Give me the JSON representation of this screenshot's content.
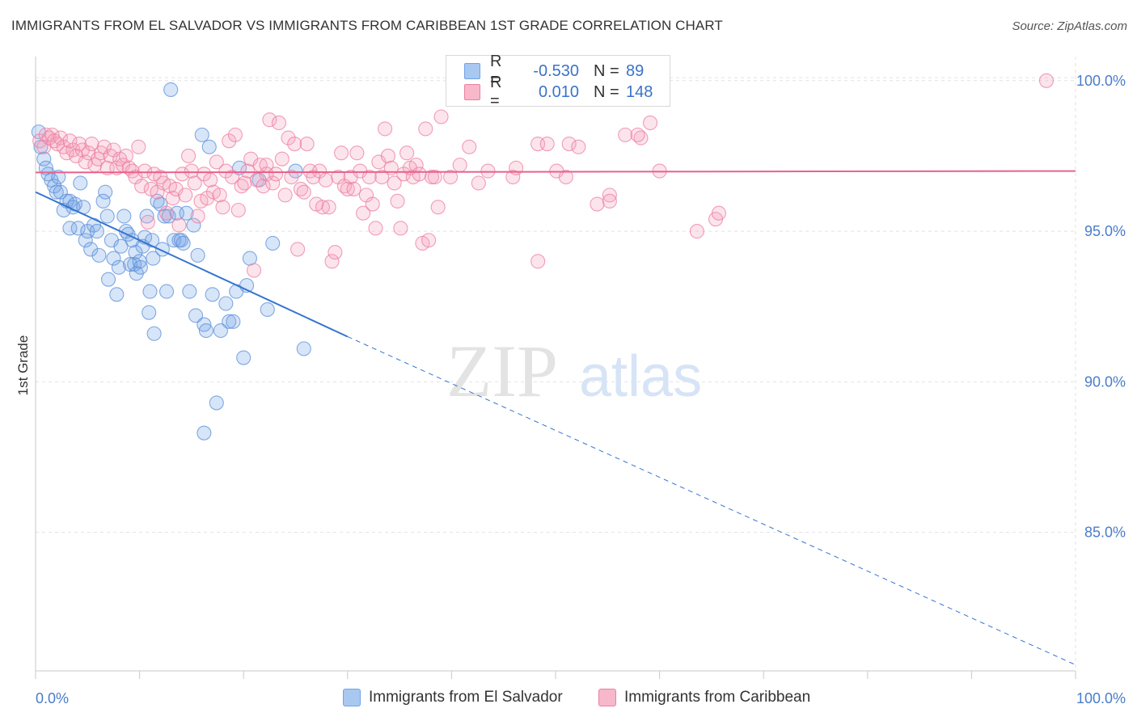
{
  "title": "IMMIGRANTS FROM EL SALVADOR VS IMMIGRANTS FROM CARIBBEAN 1ST GRADE CORRELATION CHART",
  "source": "Source: ZipAtlas.com",
  "watermark": {
    "zip": "ZIP",
    "atlas": "atlas"
  },
  "legend_top": {
    "rows": [
      {
        "r_label": "R =",
        "r_value": "-0.530",
        "n_label": "N =",
        "n_value": "89",
        "color": "#a9c8ef"
      },
      {
        "r_label": "R =",
        "r_value": "0.010",
        "n_label": "N =",
        "n_value": "148",
        "color": "#f6b8ca"
      }
    ]
  },
  "legend_bottom": [
    {
      "label": "Immigrants from El Salvador",
      "color": "#a9c8ef"
    },
    {
      "label": "Immigrants from Caribbean",
      "color": "#f6b8ca"
    }
  ],
  "chart_data": {
    "type": "scatter",
    "title": "IMMIGRANTS FROM EL SALVADOR VS IMMIGRANTS FROM CARIBBEAN 1ST GRADE CORRELATION CHART",
    "xlabel": "",
    "ylabel": "1st Grade",
    "xlim": [
      0,
      100
    ],
    "ylim": [
      80.4,
      100.8
    ],
    "x_tick_labels": [
      "0.0%",
      "100.0%"
    ],
    "y_ticks": [
      85,
      90,
      95,
      100
    ],
    "y_tick_labels": [
      "85.0%",
      "90.0%",
      "95.0%",
      "100.0%"
    ],
    "grid": true,
    "legend_position": "top-center",
    "series": [
      {
        "name": "Immigrants from El Salvador",
        "color": "#6fa3e6",
        "stroke": "#5b8fd8",
        "trend": {
          "x0": 0,
          "y0": 96.3,
          "x1": 30,
          "y1": 91.5,
          "dashed_to_x": 100,
          "dashed_to_y": 80.6
        },
        "points": [
          [
            0.3,
            98.3
          ],
          [
            0.5,
            97.8
          ],
          [
            0.8,
            97.4
          ],
          [
            1.0,
            97.1
          ],
          [
            1.2,
            96.9
          ],
          [
            1.5,
            96.7
          ],
          [
            1.8,
            96.5
          ],
          [
            2.0,
            96.3
          ],
          [
            2.2,
            96.8
          ],
          [
            2.4,
            96.3
          ],
          [
            2.7,
            95.7
          ],
          [
            3.0,
            96.0
          ],
          [
            3.3,
            96.0
          ],
          [
            3.6,
            95.8
          ],
          [
            3.8,
            95.9
          ],
          [
            4.3,
            96.6
          ],
          [
            4.6,
            95.8
          ],
          [
            3.3,
            95.1
          ],
          [
            4.1,
            95.1
          ],
          [
            4.8,
            94.7
          ],
          [
            5.0,
            95.0
          ],
          [
            5.3,
            94.4
          ],
          [
            5.6,
            95.2
          ],
          [
            5.9,
            95.0
          ],
          [
            6.1,
            94.2
          ],
          [
            6.5,
            96.0
          ],
          [
            6.7,
            96.3
          ],
          [
            6.9,
            95.5
          ],
          [
            7.0,
            93.4
          ],
          [
            7.3,
            94.7
          ],
          [
            7.5,
            94.1
          ],
          [
            7.8,
            92.9
          ],
          [
            8.0,
            93.8
          ],
          [
            8.2,
            94.5
          ],
          [
            8.5,
            95.5
          ],
          [
            8.7,
            95.0
          ],
          [
            8.9,
            94.9
          ],
          [
            9.1,
            93.9
          ],
          [
            9.3,
            94.7
          ],
          [
            9.5,
            93.9
          ],
          [
            9.6,
            94.3
          ],
          [
            9.7,
            93.6
          ],
          [
            10.0,
            94.0
          ],
          [
            10.1,
            93.8
          ],
          [
            10.3,
            94.5
          ],
          [
            10.5,
            94.8
          ],
          [
            10.7,
            95.5
          ],
          [
            10.9,
            92.3
          ],
          [
            11.0,
            93.0
          ],
          [
            11.2,
            94.7
          ],
          [
            11.3,
            94.1
          ],
          [
            11.4,
            91.6
          ],
          [
            11.7,
            96.0
          ],
          [
            12.0,
            95.9
          ],
          [
            12.2,
            94.4
          ],
          [
            12.4,
            95.5
          ],
          [
            12.6,
            93.0
          ],
          [
            12.8,
            95.5
          ],
          [
            13.0,
            99.7
          ],
          [
            13.3,
            94.7
          ],
          [
            13.6,
            95.6
          ],
          [
            13.8,
            94.7
          ],
          [
            14.0,
            94.7
          ],
          [
            14.2,
            94.6
          ],
          [
            14.5,
            95.6
          ],
          [
            14.8,
            93.0
          ],
          [
            15.2,
            95.2
          ],
          [
            15.4,
            92.2
          ],
          [
            15.6,
            94.2
          ],
          [
            16.0,
            98.2
          ],
          [
            16.2,
            91.9
          ],
          [
            16.4,
            91.7
          ],
          [
            16.7,
            97.8
          ],
          [
            17.0,
            92.9
          ],
          [
            17.4,
            89.3
          ],
          [
            17.8,
            91.7
          ],
          [
            18.3,
            92.6
          ],
          [
            18.6,
            92.0
          ],
          [
            19.0,
            92.0
          ],
          [
            19.3,
            93.0
          ],
          [
            19.6,
            97.1
          ],
          [
            20.0,
            90.8
          ],
          [
            20.3,
            93.2
          ],
          [
            20.6,
            94.1
          ],
          [
            21.5,
            96.7
          ],
          [
            22.3,
            92.4
          ],
          [
            22.8,
            94.6
          ],
          [
            25.0,
            97.0
          ],
          [
            25.8,
            91.1
          ],
          [
            16.2,
            88.3
          ]
        ]
      },
      {
        "name": "Immigrants from Caribbean",
        "color": "#f39fba",
        "stroke": "#ec7fa0",
        "trend": {
          "x0": 0,
          "y0": 96.95,
          "x1": 100,
          "y1": 97.0
        },
        "points": [
          [
            0.4,
            98.0
          ],
          [
            0.8,
            97.8
          ],
          [
            1.0,
            98.2
          ],
          [
            1.3,
            98.1
          ],
          [
            1.6,
            98.2
          ],
          [
            1.8,
            98.0
          ],
          [
            2.1,
            97.9
          ],
          [
            2.4,
            98.1
          ],
          [
            2.7,
            97.8
          ],
          [
            3.0,
            97.6
          ],
          [
            3.3,
            98.0
          ],
          [
            3.6,
            97.7
          ],
          [
            3.9,
            97.5
          ],
          [
            4.2,
            97.9
          ],
          [
            4.5,
            97.7
          ],
          [
            4.8,
            97.3
          ],
          [
            5.1,
            97.6
          ],
          [
            5.4,
            97.9
          ],
          [
            5.7,
            97.2
          ],
          [
            6.0,
            97.4
          ],
          [
            6.3,
            97.6
          ],
          [
            6.6,
            97.8
          ],
          [
            6.9,
            97.1
          ],
          [
            7.2,
            97.5
          ],
          [
            7.5,
            97.7
          ],
          [
            7.8,
            97.1
          ],
          [
            8.1,
            97.4
          ],
          [
            8.4,
            97.2
          ],
          [
            8.7,
            97.5
          ],
          [
            9.0,
            97.1
          ],
          [
            9.3,
            97.0
          ],
          [
            9.6,
            96.8
          ],
          [
            9.9,
            97.8
          ],
          [
            10.2,
            96.5
          ],
          [
            10.5,
            97.0
          ],
          [
            10.8,
            95.3
          ],
          [
            11.1,
            96.4
          ],
          [
            11.4,
            96.9
          ],
          [
            11.7,
            96.3
          ],
          [
            12.0,
            96.8
          ],
          [
            12.3,
            96.6
          ],
          [
            12.6,
            95.6
          ],
          [
            12.9,
            96.5
          ],
          [
            13.2,
            96.1
          ],
          [
            13.5,
            96.4
          ],
          [
            13.8,
            95.2
          ],
          [
            14.1,
            96.9
          ],
          [
            14.4,
            96.2
          ],
          [
            14.7,
            97.5
          ],
          [
            15.0,
            97.0
          ],
          [
            15.3,
            96.6
          ],
          [
            15.6,
            95.5
          ],
          [
            15.9,
            96.0
          ],
          [
            16.2,
            96.9
          ],
          [
            16.5,
            96.1
          ],
          [
            16.8,
            96.7
          ],
          [
            17.1,
            96.3
          ],
          [
            17.4,
            97.3
          ],
          [
            17.7,
            96.2
          ],
          [
            18.0,
            95.8
          ],
          [
            18.3,
            97.0
          ],
          [
            18.6,
            98.0
          ],
          [
            18.9,
            96.8
          ],
          [
            19.2,
            98.2
          ],
          [
            19.5,
            95.7
          ],
          [
            19.8,
            96.5
          ],
          [
            20.1,
            96.6
          ],
          [
            20.4,
            97.0
          ],
          [
            20.7,
            97.4
          ],
          [
            21.0,
            93.7
          ],
          [
            21.3,
            96.7
          ],
          [
            21.6,
            97.2
          ],
          [
            21.9,
            96.5
          ],
          [
            22.2,
            96.9
          ],
          [
            22.5,
            98.7
          ],
          [
            22.8,
            96.6
          ],
          [
            23.1,
            96.9
          ],
          [
            23.4,
            98.6
          ],
          [
            23.7,
            97.4
          ],
          [
            24.0,
            96.2
          ],
          [
            24.3,
            98.1
          ],
          [
            24.6,
            96.8
          ],
          [
            24.9,
            97.9
          ],
          [
            25.2,
            94.4
          ],
          [
            25.5,
            96.4
          ],
          [
            25.8,
            96.3
          ],
          [
            26.1,
            97.9
          ],
          [
            26.4,
            97.0
          ],
          [
            26.7,
            96.8
          ],
          [
            27.0,
            95.9
          ],
          [
            27.3,
            97.0
          ],
          [
            27.6,
            95.8
          ],
          [
            27.9,
            96.7
          ],
          [
            28.2,
            95.8
          ],
          [
            28.5,
            94.0
          ],
          [
            28.8,
            94.3
          ],
          [
            29.1,
            96.8
          ],
          [
            29.4,
            97.6
          ],
          [
            29.7,
            96.5
          ],
          [
            30.0,
            96.4
          ],
          [
            30.3,
            96.8
          ],
          [
            30.6,
            96.4
          ],
          [
            30.9,
            97.6
          ],
          [
            31.2,
            97.0
          ],
          [
            31.5,
            95.6
          ],
          [
            31.8,
            96.2
          ],
          [
            32.1,
            96.8
          ],
          [
            32.4,
            95.9
          ],
          [
            32.7,
            95.1
          ],
          [
            33.0,
            97.3
          ],
          [
            33.3,
            96.8
          ],
          [
            33.6,
            98.4
          ],
          [
            33.9,
            97.5
          ],
          [
            34.2,
            97.1
          ],
          [
            34.5,
            96.6
          ],
          [
            34.8,
            96.0
          ],
          [
            35.1,
            95.1
          ],
          [
            35.4,
            96.9
          ],
          [
            35.7,
            97.6
          ],
          [
            36.0,
            97.1
          ],
          [
            36.3,
            96.8
          ],
          [
            36.6,
            97.2
          ],
          [
            36.9,
            96.9
          ],
          [
            37.2,
            94.6
          ],
          [
            37.5,
            98.4
          ],
          [
            37.8,
            94.7
          ],
          [
            38.1,
            96.8
          ],
          [
            38.4,
            96.8
          ],
          [
            38.7,
            95.8
          ],
          [
            39.0,
            98.8
          ],
          [
            39.9,
            96.8
          ],
          [
            40.8,
            97.2
          ],
          [
            41.7,
            97.8
          ],
          [
            42.6,
            96.6
          ],
          [
            43.5,
            97.0
          ],
          [
            45.9,
            96.8
          ],
          [
            46.2,
            97.1
          ],
          [
            48.3,
            97.9
          ],
          [
            49.2,
            97.9
          ],
          [
            50.1,
            97.0
          ],
          [
            51.0,
            96.8
          ],
          [
            51.3,
            97.9
          ],
          [
            54.0,
            95.9
          ],
          [
            55.2,
            96.2
          ],
          [
            57.0,
            99.9
          ],
          [
            58.2,
            98.1
          ],
          [
            63.6,
            95.0
          ],
          [
            65.4,
            95.4
          ],
          [
            65.7,
            95.6
          ],
          [
            97.2,
            100.0
          ],
          [
            22.2,
            97.2
          ],
          [
            48.3,
            94.0
          ],
          [
            55.2,
            96.0
          ],
          [
            56.7,
            98.2
          ],
          [
            57.9,
            98.2
          ],
          [
            60.0,
            97.0
          ],
          [
            52.2,
            97.8
          ],
          [
            59.1,
            98.6
          ]
        ]
      }
    ]
  }
}
